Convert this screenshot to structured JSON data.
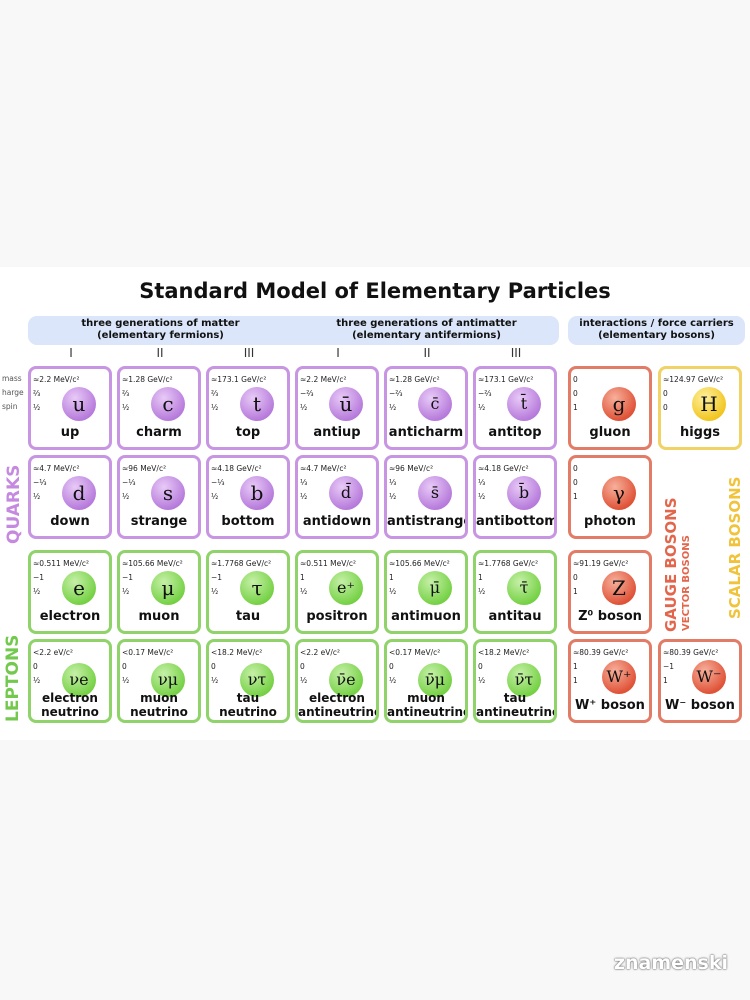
{
  "title": "Standard Model of Elementary Particles",
  "banners": {
    "matter": "three generations of matter",
    "matter_sub": "(elementary fermions)",
    "antimatter": "three generations of antimatter",
    "antimatter_sub": "(elementary antifermions)",
    "forces": "interactions / force carriers",
    "forces_sub": "(elementary bosons)"
  },
  "generations": [
    "I",
    "II",
    "III",
    "I",
    "II",
    "III"
  ],
  "row_headers": {
    "mass": "mass",
    "charge": "harge",
    "spin": "spin"
  },
  "side_labels": {
    "quarks": "QUARKS",
    "leptons": "LEPTONS",
    "gauge": "GAUGE BOSONS",
    "vector": "VECTOR BOSONS",
    "scalar": "SCALAR BOSONS"
  },
  "colors": {
    "quark": "#c895e3",
    "lepton": "#8fd36a",
    "gauge": "#e27c66",
    "scalar": "#f0d265",
    "banner": "#dbe6fa"
  },
  "particles": [
    {
      "id": "up",
      "type": "quark",
      "mass": "≈2.2 MeV/c²",
      "charge": "⅔",
      "spin": "½",
      "symbol": "u",
      "name": "up"
    },
    {
      "id": "charm",
      "type": "quark",
      "mass": "≈1.28 GeV/c²",
      "charge": "⅔",
      "spin": "½",
      "symbol": "c",
      "name": "charm"
    },
    {
      "id": "top",
      "type": "quark",
      "mass": "≈173.1 GeV/c²",
      "charge": "⅔",
      "spin": "½",
      "symbol": "t",
      "name": "top"
    },
    {
      "id": "antiup",
      "type": "quark",
      "mass": "≈2.2 MeV/c²",
      "charge": "−⅔",
      "spin": "½",
      "symbol": "ū",
      "name": "antiup"
    },
    {
      "id": "anticharm",
      "type": "quark",
      "mass": "≈1.28 GeV/c²",
      "charge": "−⅔",
      "spin": "½",
      "symbol": "c̄",
      "name": "anticharm"
    },
    {
      "id": "antitop",
      "type": "quark",
      "mass": "≈173.1 GeV/c²",
      "charge": "−⅔",
      "spin": "½",
      "symbol": "t̄",
      "name": "antitop"
    },
    {
      "id": "gluon",
      "type": "gauge",
      "mass": "0",
      "charge": "0",
      "spin": "1",
      "symbol": "g",
      "name": "gluon"
    },
    {
      "id": "higgs",
      "type": "scalar",
      "mass": "≈124.97 GeV/c²",
      "charge": "0",
      "spin": "0",
      "symbol": "H",
      "name": "higgs"
    },
    {
      "id": "down",
      "type": "quark",
      "mass": "≈4.7 MeV/c²",
      "charge": "−⅓",
      "spin": "½",
      "symbol": "d",
      "name": "down"
    },
    {
      "id": "strange",
      "type": "quark",
      "mass": "≈96 MeV/c²",
      "charge": "−⅓",
      "spin": "½",
      "symbol": "s",
      "name": "strange"
    },
    {
      "id": "bottom",
      "type": "quark",
      "mass": "≈4.18 GeV/c²",
      "charge": "−⅓",
      "spin": "½",
      "symbol": "b",
      "name": "bottom"
    },
    {
      "id": "antidown",
      "type": "quark",
      "mass": "≈4.7 MeV/c²",
      "charge": "⅓",
      "spin": "½",
      "symbol": "d̄",
      "name": "antidown"
    },
    {
      "id": "antistrange",
      "type": "quark",
      "mass": "≈96 MeV/c²",
      "charge": "⅓",
      "spin": "½",
      "symbol": "s̄",
      "name": "antistrange"
    },
    {
      "id": "antibottom",
      "type": "quark",
      "mass": "≈4.18 GeV/c²",
      "charge": "⅓",
      "spin": "½",
      "symbol": "b̄",
      "name": "antibottom"
    },
    {
      "id": "photon",
      "type": "gauge",
      "mass": "0",
      "charge": "0",
      "spin": "1",
      "symbol": "γ",
      "name": "photon"
    },
    {
      "id": "electron",
      "type": "lepton",
      "mass": "≈0.511 MeV/c²",
      "charge": "−1",
      "spin": "½",
      "symbol": "e",
      "name": "electron"
    },
    {
      "id": "muon",
      "type": "lepton",
      "mass": "≈105.66 MeV/c²",
      "charge": "−1",
      "spin": "½",
      "symbol": "μ",
      "name": "muon"
    },
    {
      "id": "tau",
      "type": "lepton",
      "mass": "≈1.7768 GeV/c²",
      "charge": "−1",
      "spin": "½",
      "symbol": "τ",
      "name": "tau"
    },
    {
      "id": "positron",
      "type": "lepton",
      "mass": "≈0.511 MeV/c²",
      "charge": "1",
      "spin": "½",
      "symbol": "e⁺",
      "name": "positron"
    },
    {
      "id": "antimuon",
      "type": "lepton",
      "mass": "≈105.66 MeV/c²",
      "charge": "1",
      "spin": "½",
      "symbol": "μ̄",
      "name": "antimuon"
    },
    {
      "id": "antitau",
      "type": "lepton",
      "mass": "≈1.7768 GeV/c²",
      "charge": "1",
      "spin": "½",
      "symbol": "τ̄",
      "name": "antitau"
    },
    {
      "id": "z-boson",
      "type": "gauge",
      "mass": "≈91.19 GeV/c²",
      "charge": "0",
      "spin": "1",
      "symbol": "Z",
      "name": "Z⁰ boson"
    },
    {
      "id": "electron-neutrino",
      "type": "lepton",
      "mass": "<2.2 eV/c²",
      "charge": "0",
      "spin": "½",
      "symbol": "νe",
      "name": "electron",
      "name2": "neutrino"
    },
    {
      "id": "muon-neutrino",
      "type": "lepton",
      "mass": "<0.17 MeV/c²",
      "charge": "0",
      "spin": "½",
      "symbol": "νμ",
      "name": "muon",
      "name2": "neutrino"
    },
    {
      "id": "tau-neutrino",
      "type": "lepton",
      "mass": "<18.2 MeV/c²",
      "charge": "0",
      "spin": "½",
      "symbol": "ντ",
      "name": "tau",
      "name2": "neutrino"
    },
    {
      "id": "electron-antineutrino",
      "type": "lepton",
      "mass": "<2.2 eV/c²",
      "charge": "0",
      "spin": "½",
      "symbol": "ν̄e",
      "name": "electron",
      "name2": "antineutrino"
    },
    {
      "id": "muon-antineutrino",
      "type": "lepton",
      "mass": "<0.17 MeV/c²",
      "charge": "0",
      "spin": "½",
      "symbol": "ν̄μ",
      "name": "muon",
      "name2": "antineutrino"
    },
    {
      "id": "tau-antineutrino",
      "type": "lepton",
      "mass": "<18.2 MeV/c²",
      "charge": "0",
      "spin": "½",
      "symbol": "ν̄τ",
      "name": "tau",
      "name2": "antineutrino"
    },
    {
      "id": "w-plus-boson",
      "type": "gauge",
      "mass": "≈80.39 GeV/c²",
      "charge": "1",
      "spin": "1",
      "symbol": "W⁺",
      "name": "W⁺ boson"
    },
    {
      "id": "w-minus-boson",
      "type": "gauge",
      "mass": "≈80.39 GeV/c²",
      "charge": "−1",
      "spin": "1",
      "symbol": "W⁻",
      "name": "W⁻ boson"
    }
  ],
  "watermark": "znamenski"
}
